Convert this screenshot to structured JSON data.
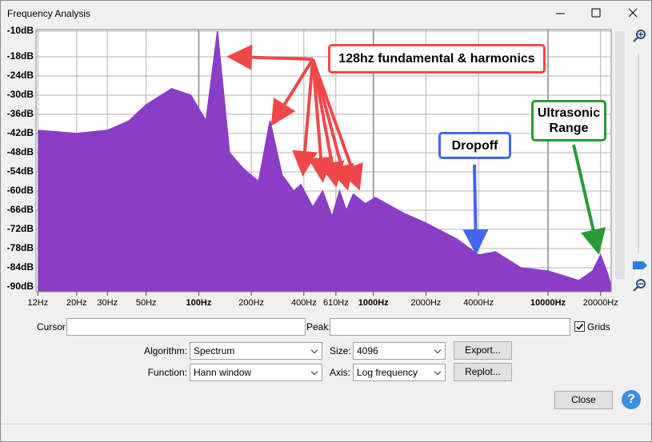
{
  "window": {
    "title": "Frequency Analysis"
  },
  "chart_data": {
    "type": "area",
    "x": [
      12,
      20,
      30,
      40,
      50,
      70,
      90,
      110,
      128,
      150,
      180,
      220,
      256,
      300,
      350,
      384,
      450,
      512,
      580,
      640,
      700,
      768,
      900,
      1024,
      1500,
      2000,
      3000,
      4000,
      5000,
      7000,
      10000,
      15000,
      18000,
      20000,
      22000,
      23000
    ],
    "values": [
      -41,
      -42,
      -41,
      -38,
      -33,
      -28,
      -30,
      -38,
      -10,
      -48,
      -53,
      -57,
      -38,
      -55,
      -60,
      -58,
      -65,
      -60,
      -68,
      -60,
      -66,
      -61,
      -64,
      -62,
      -67,
      -70,
      -75,
      -80,
      -79,
      -84,
      -85,
      -88,
      -85,
      -80,
      -86,
      -90
    ],
    "color": "#8a3ec6",
    "xscale": "log",
    "xlim": [
      11.7,
      23000
    ],
    "ylim": [
      -91.5,
      -9.5
    ],
    "xticks": [
      {
        "value": 12,
        "label": "12Hz"
      },
      {
        "value": 20,
        "label": "20Hz"
      },
      {
        "value": 30,
        "label": "30Hz"
      },
      {
        "value": 50,
        "label": "50Hz"
      },
      {
        "value": 100,
        "label": "100Hz"
      },
      {
        "value": 200,
        "label": "200Hz"
      },
      {
        "value": 400,
        "label": "400Hz"
      },
      {
        "value": 610,
        "label": "610Hz"
      },
      {
        "value": 1000,
        "label": "1000Hz"
      },
      {
        "value": 2000,
        "label": "2000Hz"
      },
      {
        "value": 4000,
        "label": "4000Hz"
      },
      {
        "value": 10000,
        "label": "10000Hz"
      },
      {
        "value": 20000,
        "label": "20000Hz"
      }
    ],
    "yticks": [
      {
        "value": -10,
        "label": "-10dB"
      },
      {
        "value": -18,
        "label": "-18dB"
      },
      {
        "value": -24,
        "label": "-24dB"
      },
      {
        "value": -30,
        "label": "-30dB"
      },
      {
        "value": -36,
        "label": "-36dB"
      },
      {
        "value": -42,
        "label": "-42dB"
      },
      {
        "value": -48,
        "label": "-48dB"
      },
      {
        "value": -54,
        "label": "-54dB"
      },
      {
        "value": -60,
        "label": "-60dB"
      },
      {
        "value": -66,
        "label": "-66dB"
      },
      {
        "value": -72,
        "label": "-72dB"
      },
      {
        "value": -78,
        "label": "-78dB"
      },
      {
        "value": -84,
        "label": "-84dB"
      },
      {
        "value": -90,
        "label": "-90dB"
      }
    ],
    "grid": true,
    "annotations": [
      "128hz fundamental & harmonics",
      "Dropoff",
      "Ultrasonic Range"
    ]
  },
  "controls": {
    "cursor_label": "Cursor:",
    "peak_label": "Peak:",
    "grids_label": "Grids",
    "grids_checked": true,
    "algorithm_label": "Algorithm:",
    "algorithm": "Spectrum",
    "size_label": "Size:",
    "size": "4096",
    "export": "Export...",
    "function_label": "Function:",
    "function": "Hann window",
    "axis_label": "Axis:",
    "axis": "Log frequency",
    "replot": "Replot...",
    "close": "Close",
    "help": "?"
  }
}
